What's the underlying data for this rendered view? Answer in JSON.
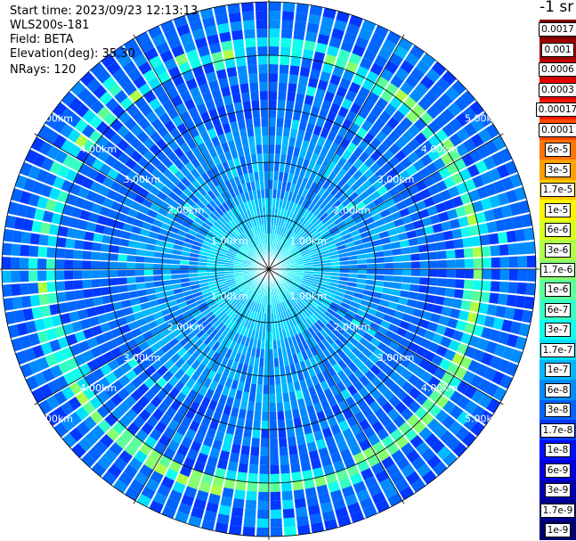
{
  "header": {
    "start_time": "Start time: 2023/09/23 12:13:13",
    "instrument": "WLS200s-181",
    "field": "Field: BETA",
    "elevation": "Elevation(deg): 35.30",
    "nrays": "NRays: 120"
  },
  "colorbar": {
    "title": "-1 sr",
    "levels": [
      {
        "label": "0.0017",
        "color": "#7f0000"
      },
      {
        "label": "0.001",
        "color": "#a00000"
      },
      {
        "label": "0.0006",
        "color": "#c40000"
      },
      {
        "label": "0.0003",
        "color": "#ea0000"
      },
      {
        "label": "0.00017",
        "color": "#ff1a00"
      },
      {
        "label": "0.0001",
        "color": "#ff4800"
      },
      {
        "label": "6e-5",
        "color": "#ff7300"
      },
      {
        "label": "3e-5",
        "color": "#ffa000"
      },
      {
        "label": "1.7e-5",
        "color": "#ffcc00"
      },
      {
        "label": "1e-5",
        "color": "#fff500"
      },
      {
        "label": "6e-6",
        "color": "#d9ff1e"
      },
      {
        "label": "3e-6",
        "color": "#b0ff46"
      },
      {
        "label": "1.7e-6",
        "color": "#86ff70"
      },
      {
        "label": "1e-6",
        "color": "#5cff9a"
      },
      {
        "label": "6e-7",
        "color": "#34ffc4"
      },
      {
        "label": "3e-7",
        "color": "#0fffec"
      },
      {
        "label": "1.7e-7",
        "color": "#00e0ff"
      },
      {
        "label": "1e-7",
        "color": "#00b8ff"
      },
      {
        "label": "6e-8",
        "color": "#008cff"
      },
      {
        "label": "3e-8",
        "color": "#0064ff"
      },
      {
        "label": "1.7e-8",
        "color": "#0038ff"
      },
      {
        "label": "1e-8",
        "color": "#0010ff"
      },
      {
        "label": "6e-9",
        "color": "#0000e0"
      },
      {
        "label": "3e-9",
        "color": "#0000b0"
      },
      {
        "label": "1.7e-9",
        "color": "#000090"
      },
      {
        "label": "1e-9",
        "color": "#000070"
      }
    ]
  },
  "chart_data": {
    "type": "heatmap",
    "projection": "polar",
    "title": "",
    "n_rays": 120,
    "range_max_km": 5.0,
    "range_ring_labels": [
      "1.00km",
      "2.00km",
      "3.00km",
      "4.00km",
      "5.00km"
    ],
    "range_rings_km": [
      1,
      2,
      3,
      4,
      5
    ],
    "spoke_angles_deg": [
      0,
      30,
      60,
      90,
      120,
      150,
      180,
      210,
      240,
      270,
      300,
      330
    ],
    "grid": true,
    "colorscale": "jet",
    "background_level_index": 19,
    "high_backscatter_ring_km": 4.1,
    "high_backscatter_ring_level_index": 11
  }
}
